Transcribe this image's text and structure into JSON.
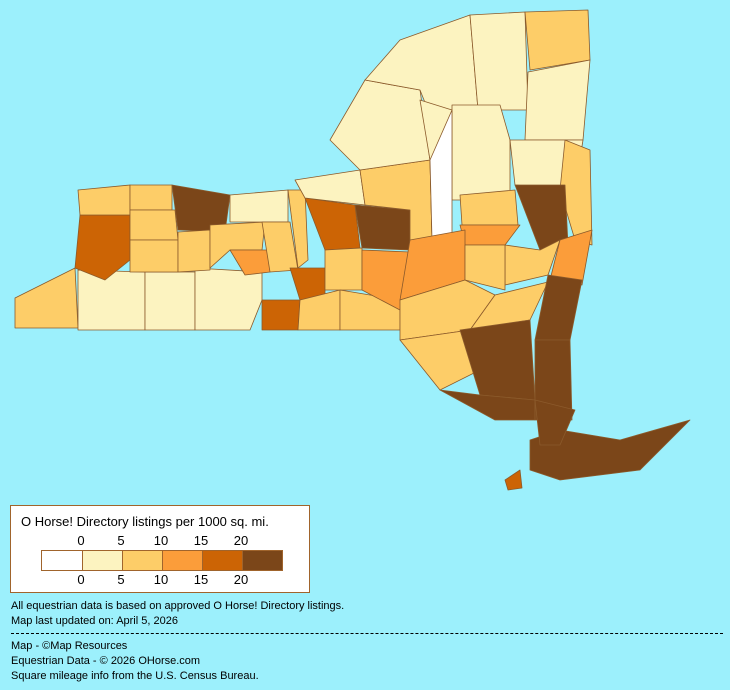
{
  "legend": {
    "title": "O Horse! Directory listings per 1000 sq. mi.",
    "ticks": [
      "0",
      "5",
      "10",
      "15",
      "20"
    ],
    "colors": [
      "#ffffff",
      "#fcf3c0",
      "#fdcd68",
      "#fb9d3a",
      "#cc6405",
      "#7b4619"
    ]
  },
  "notes": {
    "line1": "All equestrian data is based on approved O Horse! Directory listings.",
    "line2": "Map last updated on: April 5, 2026",
    "credit_map": "Map - ©Map Resources",
    "credit_data": "Equestrian Data - © 2026 OHorse.com",
    "credit_census": "Square mileage info from the U.S. Census Bureau."
  },
  "map": {
    "background": "#9cf0fc",
    "county_bins": [
      2,
      1,
      1,
      1,
      4,
      4,
      2,
      2,
      2,
      2,
      5,
      2,
      2,
      1,
      3,
      2,
      4,
      2,
      2,
      4,
      2,
      2,
      1,
      5,
      3,
      2,
      1,
      1,
      1,
      2,
      1,
      1,
      1,
      0,
      1,
      2,
      5,
      2,
      3,
      2,
      3,
      2,
      3,
      2,
      2,
      2,
      5,
      5,
      5,
      5,
      5,
      4,
      5
    ]
  }
}
